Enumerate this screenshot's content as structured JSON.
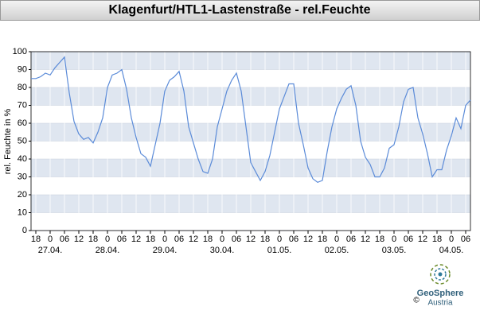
{
  "chart_data": {
    "type": "line",
    "title": "Klagenfurt/HTL1-Lastenstraße - rel.Feuchte",
    "y_label": "rel. Feuchte in %",
    "x": [
      -2,
      0,
      2,
      4,
      6,
      8,
      10,
      12,
      14,
      16,
      18,
      20,
      22,
      24,
      26,
      28,
      30,
      32,
      34,
      36,
      38,
      40,
      42,
      44,
      46,
      48,
      50,
      52,
      54,
      56,
      58,
      60,
      62,
      64,
      66,
      68,
      70,
      72,
      74,
      76,
      78,
      80,
      82,
      84,
      86,
      88,
      90,
      92,
      94,
      96,
      98,
      100,
      102,
      104,
      106,
      108,
      110,
      112,
      114,
      116,
      118,
      120,
      122,
      124,
      126,
      128,
      130,
      132,
      134,
      136,
      138,
      140,
      142,
      144,
      146,
      148,
      150,
      152,
      154,
      156,
      158,
      160,
      162,
      164,
      166,
      168,
      170,
      172,
      174,
      176,
      178,
      180,
      182
    ],
    "series": [
      {
        "name": "rel.Feuchte",
        "color": "#5b8bd8",
        "values": [
          85,
          85,
          86,
          88,
          87,
          91,
          94,
          97,
          77,
          61,
          54,
          51,
          52,
          49,
          55,
          63,
          80,
          87,
          88,
          90,
          79,
          63,
          52,
          43,
          41,
          36,
          48,
          60,
          78,
          84,
          86,
          89,
          78,
          58,
          49,
          40,
          33,
          32,
          40,
          58,
          68,
          78,
          84,
          88,
          78,
          58,
          38,
          33,
          28,
          33,
          42,
          55,
          68,
          75,
          82,
          82,
          60,
          48,
          35,
          29,
          27,
          28,
          44,
          58,
          68,
          74,
          79,
          81,
          70,
          50,
          41,
          37,
          30,
          30,
          35,
          46,
          48,
          58,
          72,
          79,
          80,
          63,
          54,
          43,
          30,
          34,
          34,
          45,
          53,
          63,
          57,
          70,
          73
        ]
      }
    ],
    "xlim": [
      -2,
      182
    ],
    "xticks": [
      {
        "value": 0,
        "label": "18"
      },
      {
        "value": 6,
        "label": "0"
      },
      {
        "value": 12,
        "label": "06"
      },
      {
        "value": 18,
        "label": "12"
      },
      {
        "value": 24,
        "label": "18"
      },
      {
        "value": 30,
        "label": "0"
      },
      {
        "value": 36,
        "label": "06"
      },
      {
        "value": 42,
        "label": "12"
      },
      {
        "value": 48,
        "label": "18"
      },
      {
        "value": 54,
        "label": "0"
      },
      {
        "value": 60,
        "label": "06"
      },
      {
        "value": 66,
        "label": "12"
      },
      {
        "value": 72,
        "label": "18"
      },
      {
        "value": 78,
        "label": "0"
      },
      {
        "value": 84,
        "label": "06"
      },
      {
        "value": 90,
        "label": "12"
      },
      {
        "value": 96,
        "label": "18"
      },
      {
        "value": 102,
        "label": "0"
      },
      {
        "value": 108,
        "label": "06"
      },
      {
        "value": 114,
        "label": "12"
      },
      {
        "value": 120,
        "label": "18"
      },
      {
        "value": 126,
        "label": "0"
      },
      {
        "value": 132,
        "label": "06"
      },
      {
        "value": 138,
        "label": "12"
      },
      {
        "value": 144,
        "label": "18"
      },
      {
        "value": 150,
        "label": "0"
      },
      {
        "value": 156,
        "label": "06"
      },
      {
        "value": 162,
        "label": "12"
      },
      {
        "value": 168,
        "label": "18"
      },
      {
        "value": 174,
        "label": "0"
      },
      {
        "value": 180,
        "label": "06"
      }
    ],
    "date_labels": [
      {
        "value": 6,
        "label": "27.04."
      },
      {
        "value": 30,
        "label": "28.04."
      },
      {
        "value": 54,
        "label": "29.04."
      },
      {
        "value": 78,
        "label": "30.04."
      },
      {
        "value": 102,
        "label": "01.05."
      },
      {
        "value": 126,
        "label": "02.05."
      },
      {
        "value": 150,
        "label": "03.05."
      },
      {
        "value": 174,
        "label": "04.05."
      }
    ],
    "ylim": [
      0,
      100
    ],
    "yticks": [
      0,
      10,
      20,
      30,
      40,
      50,
      60,
      70,
      80,
      90,
      100
    ],
    "grid": true,
    "band_color": "#dfe6f0"
  },
  "logo": {
    "name": "GeoSphere",
    "sub": "Austria",
    "copyright": "©"
  }
}
